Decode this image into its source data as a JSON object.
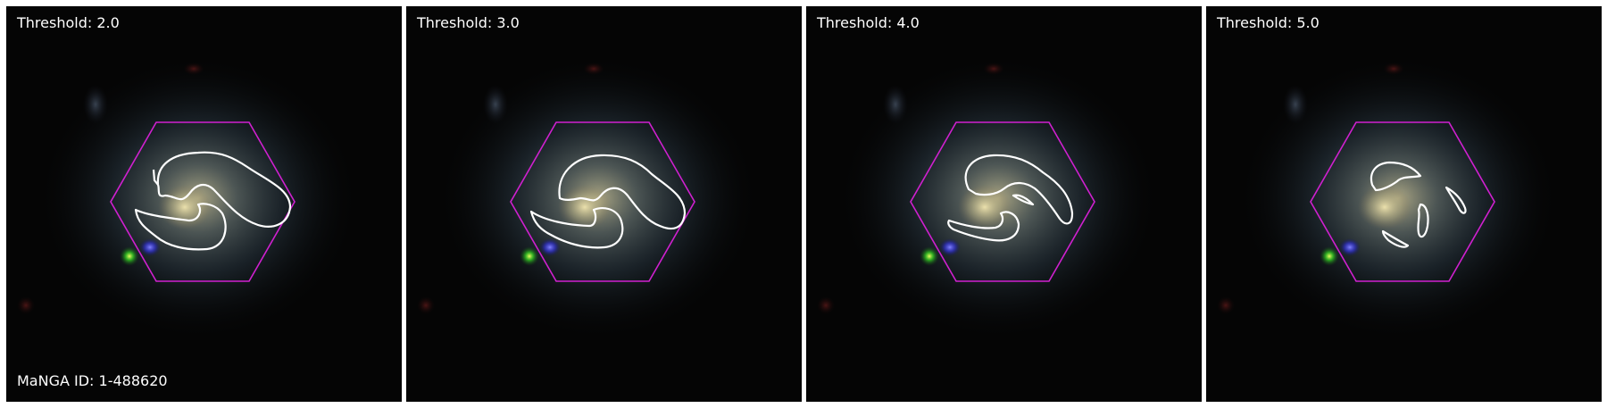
{
  "panels": [
    {
      "threshold_label": "Threshold: 2.0"
    },
    {
      "threshold_label": "Threshold: 3.0"
    },
    {
      "threshold_label": "Threshold: 4.0"
    },
    {
      "threshold_label": "Threshold: 5.0"
    }
  ],
  "manga_id_label": "MaNGA ID: 1-488620",
  "colors": {
    "hexagon": "#d020d0",
    "contour": "#ffffff",
    "background": "#050505"
  }
}
